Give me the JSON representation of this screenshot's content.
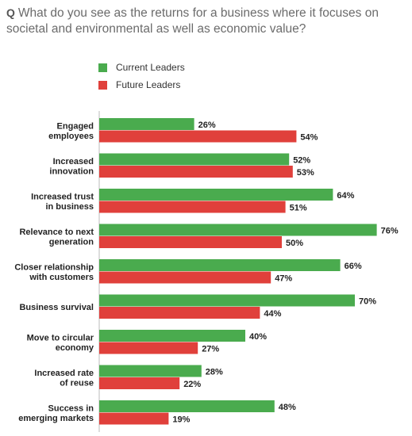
{
  "question": {
    "prefix": "Q",
    "text": "What do you see as the returns for a business where it focuses on societal and environmental as well as economic value?"
  },
  "colors": {
    "current": "#4aab4e",
    "future": "#e0403b"
  },
  "chart_data": {
    "type": "bar",
    "orientation": "horizontal",
    "categories": [
      [
        "Engaged",
        "employees"
      ],
      [
        "Increased",
        "innovation"
      ],
      [
        "Increased trust",
        "in business"
      ],
      [
        "Relevance to next",
        "generation"
      ],
      [
        "Closer relationship",
        "with customers"
      ],
      [
        "Business survival"
      ],
      [
        "Move to circular",
        "economy"
      ],
      [
        "Increased rate",
        "of reuse"
      ],
      [
        "Success in",
        "emerging markets"
      ]
    ],
    "series": [
      {
        "name": "Current Leaders",
        "values": [
          26,
          52,
          64,
          76,
          66,
          70,
          40,
          28,
          48
        ]
      },
      {
        "name": "Future Leaders",
        "values": [
          54,
          53,
          51,
          50,
          47,
          44,
          27,
          22,
          19
        ]
      }
    ],
    "value_suffix": "%",
    "legend_position": "top-left"
  }
}
